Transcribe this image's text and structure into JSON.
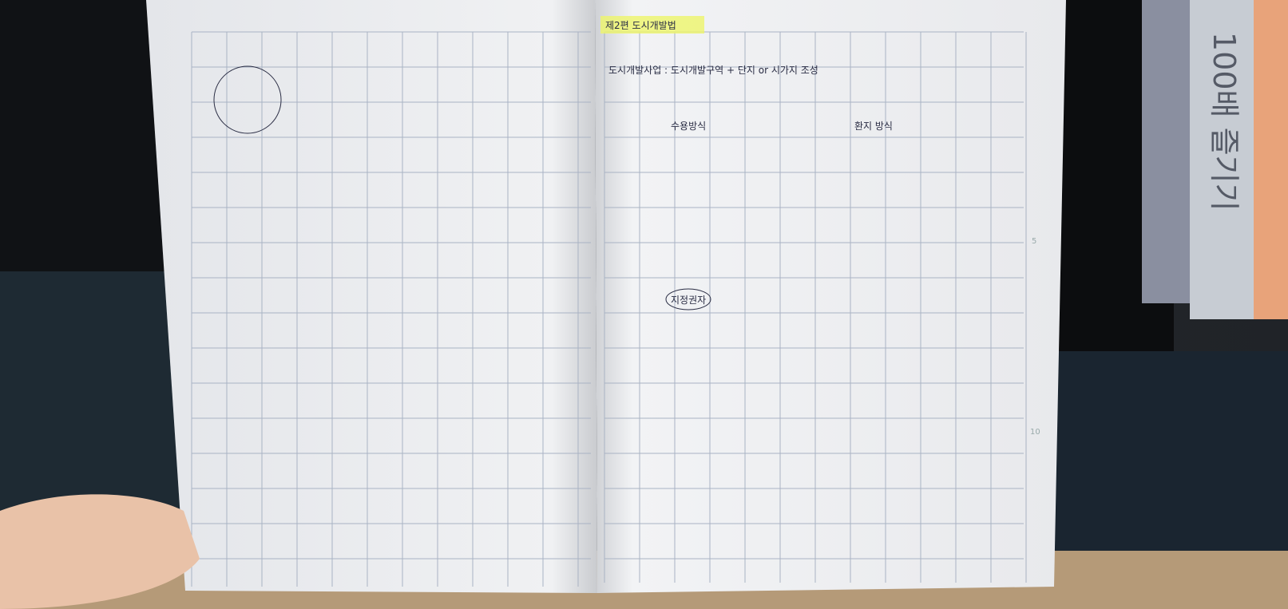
{
  "right_page": {
    "header": "제2편 도시개발법",
    "page_numbers": [
      "5",
      "10"
    ],
    "notes": [
      "도시개발사업 : 도시개발구역 + 단지 or 시가지 조성",
      "수용방식",
      "환지 방식",
      "지정권자"
    ]
  },
  "book_spine": "100배 즐기기"
}
